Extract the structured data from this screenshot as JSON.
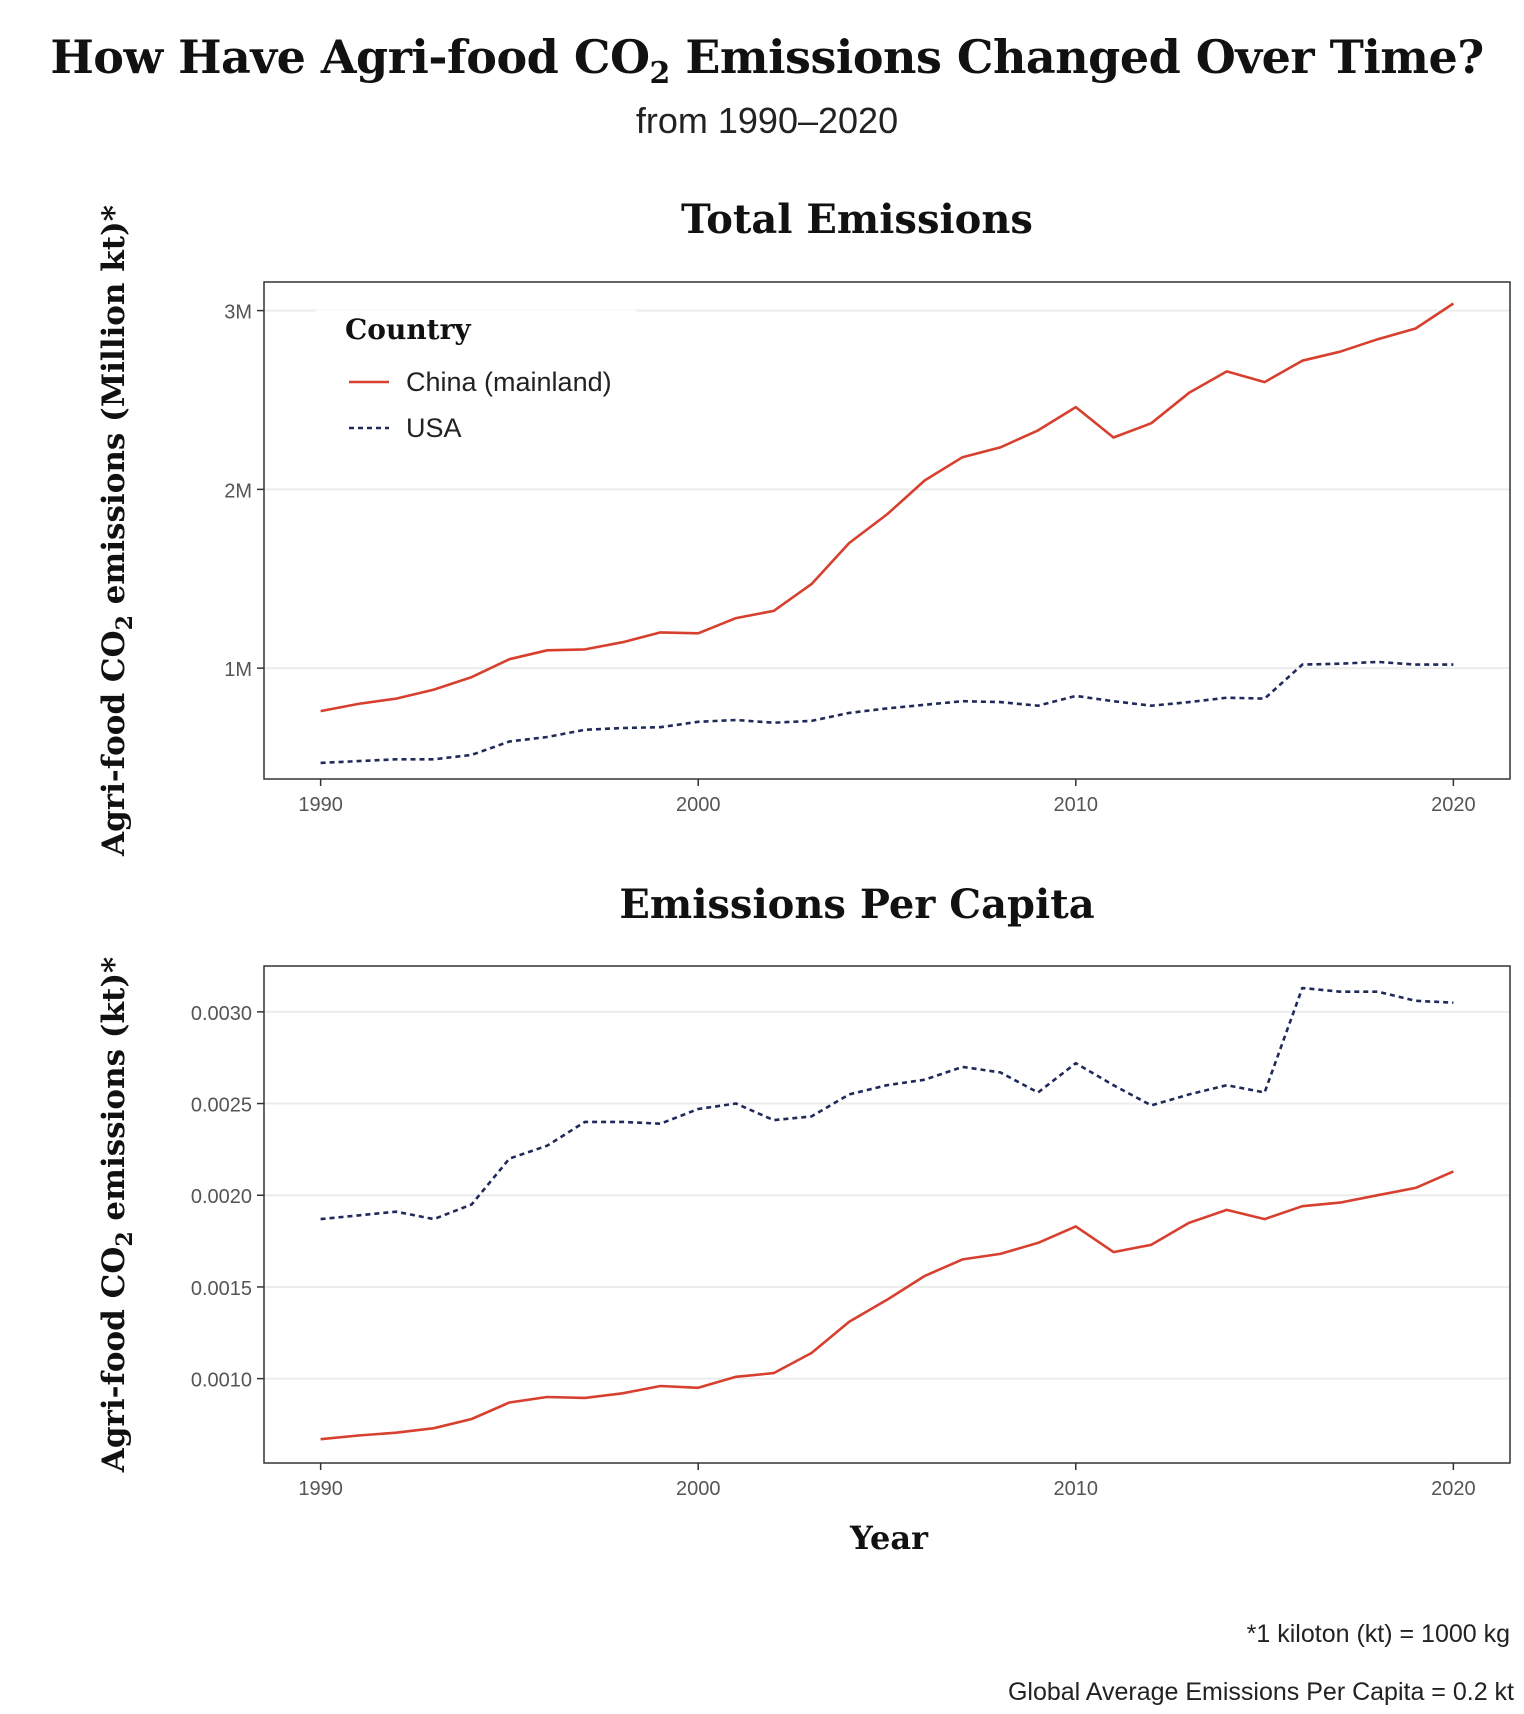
{
  "title": "How Have Agri-food CO",
  "title_sub": "2",
  "title_rest": " Emissions Changed Over Time?",
  "subtitle": "from 1990–2020",
  "footnote_1": "*1 kiloton (kt) = 1000 kg",
  "footnote_2": "Global Average Emissions Per Capita = 0.2 kt",
  "colors": {
    "china": "#d7402f",
    "usa": "#1f2a5a"
  },
  "chart_data": [
    {
      "type": "line",
      "title": "Total Emissions",
      "ylabel_parts": [
        "Agri-food CO",
        "2",
        " emissions (Million kt)*"
      ],
      "xlabel": "",
      "xlim": [
        1988.5,
        2021.5
      ],
      "ylim": [
        380000,
        3160000
      ],
      "xticks": [
        1990,
        2000,
        2010,
        2020
      ],
      "xtick_labels": [
        "1990",
        "2000",
        "2010",
        "2020"
      ],
      "yticks": [
        1000000,
        2000000,
        3000000
      ],
      "ytick_labels": [
        "1M",
        "2M",
        "3M"
      ],
      "grid": true,
      "legend": {
        "title": "Country",
        "position": "top-left",
        "entries": [
          "China (mainland)",
          "USA"
        ]
      },
      "x": [
        1990,
        1991,
        1992,
        1993,
        1994,
        1995,
        1996,
        1997,
        1998,
        1999,
        2000,
        2001,
        2002,
        2003,
        2004,
        2005,
        2006,
        2007,
        2008,
        2009,
        2010,
        2011,
        2012,
        2013,
        2014,
        2015,
        2016,
        2017,
        2018,
        2019,
        2020
      ],
      "series": [
        {
          "name": "China (mainland)",
          "style": "solid",
          "color_key": "china",
          "values": [
            760000,
            800000,
            830000,
            880000,
            950000,
            1050000,
            1100000,
            1105000,
            1145000,
            1200000,
            1195000,
            1280000,
            1320000,
            1470000,
            1700000,
            1860000,
            2050000,
            2180000,
            2235000,
            2330000,
            2460000,
            2290000,
            2370000,
            2540000,
            2660000,
            2600000,
            2720000,
            2770000,
            2840000,
            2900000,
            3040000
          ]
        },
        {
          "name": "USA",
          "style": "dashed",
          "color_key": "usa",
          "values": [
            470000,
            480000,
            490000,
            490000,
            515000,
            590000,
            615000,
            655000,
            665000,
            670000,
            700000,
            710000,
            695000,
            705000,
            750000,
            775000,
            795000,
            815000,
            810000,
            790000,
            845000,
            815000,
            790000,
            810000,
            835000,
            830000,
            1020000,
            1025000,
            1035000,
            1020000,
            1020000
          ]
        }
      ]
    },
    {
      "type": "line",
      "title": "Emissions Per Capita",
      "ylabel_parts": [
        "Agri-food CO",
        "2",
        " emissions (kt)*"
      ],
      "xlabel": "Year",
      "xlim": [
        1988.5,
        2021.5
      ],
      "ylim": [
        0.00054,
        0.00325
      ],
      "xticks": [
        1990,
        2000,
        2010,
        2020
      ],
      "xtick_labels": [
        "1990",
        "2000",
        "2010",
        "2020"
      ],
      "yticks": [
        0.001,
        0.0015,
        0.002,
        0.0025,
        0.003
      ],
      "ytick_labels": [
        "0.0010",
        "0.0015",
        "0.0020",
        "0.0025",
        "0.0030"
      ],
      "grid": true,
      "x": [
        1990,
        1991,
        1992,
        1993,
        1994,
        1995,
        1996,
        1997,
        1998,
        1999,
        2000,
        2001,
        2002,
        2003,
        2004,
        2005,
        2006,
        2007,
        2008,
        2009,
        2010,
        2011,
        2012,
        2013,
        2014,
        2015,
        2016,
        2017,
        2018,
        2019,
        2020
      ],
      "series": [
        {
          "name": "China (mainland)",
          "style": "solid",
          "color_key": "china",
          "values": [
            0.00067,
            0.00069,
            0.000705,
            0.00073,
            0.00078,
            0.00087,
            0.0009,
            0.000895,
            0.00092,
            0.00096,
            0.00095,
            0.00101,
            0.00103,
            0.00114,
            0.00131,
            0.00143,
            0.00156,
            0.00165,
            0.00168,
            0.00174,
            0.00183,
            0.00169,
            0.00173,
            0.00185,
            0.00192,
            0.00187,
            0.00194,
            0.00196,
            0.002,
            0.00204,
            0.00213
          ]
        },
        {
          "name": "USA",
          "style": "dashed",
          "color_key": "usa",
          "values": [
            0.00187,
            0.00189,
            0.00191,
            0.00187,
            0.00195,
            0.0022,
            0.00227,
            0.0024,
            0.0024,
            0.00239,
            0.00247,
            0.0025,
            0.00241,
            0.00243,
            0.00255,
            0.0026,
            0.00263,
            0.0027,
            0.00267,
            0.00256,
            0.00272,
            0.0026,
            0.00249,
            0.00255,
            0.0026,
            0.00256,
            0.00313,
            0.00311,
            0.00311,
            0.00306,
            0.00305
          ]
        }
      ]
    }
  ]
}
